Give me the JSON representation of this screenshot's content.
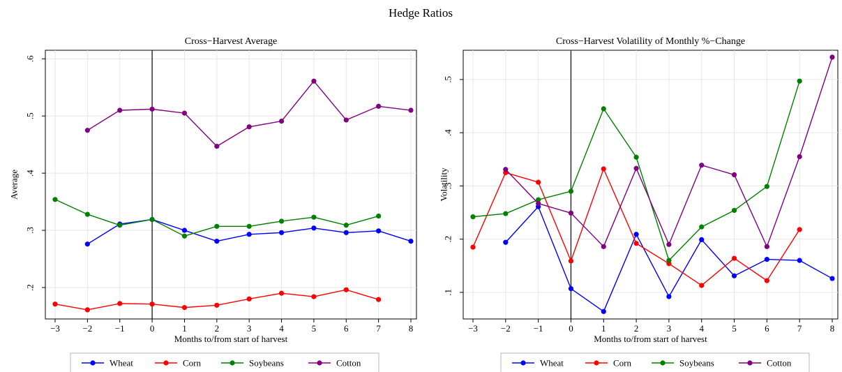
{
  "figure": {
    "title": "Hedge Ratios"
  },
  "chart_data": [
    {
      "type": "line",
      "title": "Cross−Harvest Average",
      "xlabel": "Months to/from start of harvest",
      "ylabel": "Average",
      "xlim": [
        -3,
        8
      ],
      "ylim": [
        0.145,
        0.615
      ],
      "xticks": [
        -3,
        -2,
        -1,
        0,
        1,
        2,
        3,
        4,
        5,
        6,
        7,
        8
      ],
      "xtick_labels": [
        "−3",
        "−2",
        "−1",
        "0",
        "1",
        "2",
        "3",
        "4",
        "5",
        "6",
        "7",
        "8"
      ],
      "yticks": [
        0.2,
        0.3,
        0.4,
        0.5,
        0.6
      ],
      "ytick_labels": [
        ".2",
        ".3",
        ".4",
        ".5",
        ".6"
      ],
      "reference_line_x": 0,
      "grid": true,
      "legend_position": "bottom",
      "series": [
        {
          "name": "Wheat",
          "color": "#0000ff",
          "x": [
            -2,
            -1,
            0,
            1,
            2,
            3,
            4,
            5,
            6,
            7,
            8
          ],
          "y": [
            0.276,
            0.311,
            0.319,
            0.3,
            0.281,
            0.293,
            0.296,
            0.304,
            0.296,
            0.299,
            0.281
          ]
        },
        {
          "name": "Corn",
          "color": "#ff0000",
          "x": [
            -3,
            -2,
            -1,
            0,
            1,
            2,
            3,
            4,
            5,
            6,
            7
          ],
          "y": [
            0.171,
            0.161,
            0.172,
            0.171,
            0.165,
            0.169,
            0.18,
            0.19,
            0.184,
            0.196,
            0.179
          ]
        },
        {
          "name": "Soybeans",
          "color": "#008000",
          "x": [
            -3,
            -2,
            -1,
            0,
            1,
            2,
            3,
            4,
            5,
            6,
            7
          ],
          "y": [
            0.354,
            0.328,
            0.309,
            0.319,
            0.29,
            0.307,
            0.307,
            0.316,
            0.323,
            0.309,
            0.325
          ]
        },
        {
          "name": "Cotton",
          "color": "#800080",
          "x": [
            -2,
            -1,
            0,
            1,
            2,
            3,
            4,
            5,
            6,
            7,
            8
          ],
          "y": [
            0.475,
            0.51,
            0.512,
            0.505,
            0.447,
            0.481,
            0.491,
            0.561,
            0.493,
            0.517,
            0.51
          ]
        }
      ]
    },
    {
      "type": "line",
      "title": "Cross−Harvest Volatility of Monthly %−Change",
      "xlabel": "Months to/from start of harvest",
      "ylabel": "Volatility",
      "xlim": [
        -3,
        8
      ],
      "ylim": [
        0.05,
        0.555
      ],
      "xticks": [
        -3,
        -2,
        -1,
        0,
        1,
        2,
        3,
        4,
        5,
        6,
        7,
        8
      ],
      "xtick_labels": [
        "−3",
        "−2",
        "−1",
        "0",
        "1",
        "2",
        "3",
        "4",
        "5",
        "6",
        "7",
        "8"
      ],
      "yticks": [
        0.1,
        0.2,
        0.3,
        0.4,
        0.5
      ],
      "ytick_labels": [
        ".1",
        ".2",
        ".3",
        ".4",
        ".5"
      ],
      "reference_line_x": 0,
      "grid": true,
      "legend_position": "bottom",
      "series": [
        {
          "name": "Wheat",
          "color": "#0000ff",
          "x": [
            -2,
            -1,
            0,
            1,
            2,
            3,
            4,
            5,
            6,
            7,
            8
          ],
          "y": [
            0.194,
            0.261,
            0.107,
            0.064,
            0.209,
            0.092,
            0.199,
            0.131,
            0.162,
            0.16,
            0.126
          ]
        },
        {
          "name": "Corn",
          "color": "#ff0000",
          "x": [
            -3,
            -2,
            -1,
            0,
            1,
            2,
            3,
            4,
            5,
            6,
            7
          ],
          "y": [
            0.185,
            0.325,
            0.307,
            0.159,
            0.332,
            0.192,
            0.154,
            0.113,
            0.164,
            0.122,
            0.218
          ]
        },
        {
          "name": "Soybeans",
          "color": "#008000",
          "x": [
            -3,
            -2,
            -1,
            0,
            1,
            2,
            3,
            4,
            5,
            6,
            7
          ],
          "y": [
            0.242,
            0.248,
            0.274,
            0.29,
            0.445,
            0.354,
            0.16,
            0.223,
            0.254,
            0.299,
            0.497
          ]
        },
        {
          "name": "Cotton",
          "color": "#800080",
          "x": [
            -2,
            -1,
            0,
            1,
            2,
            3,
            4,
            5,
            6,
            7,
            8
          ],
          "y": [
            0.331,
            0.267,
            0.249,
            0.186,
            0.333,
            0.19,
            0.339,
            0.321,
            0.186,
            0.355,
            0.542
          ]
        }
      ]
    }
  ]
}
